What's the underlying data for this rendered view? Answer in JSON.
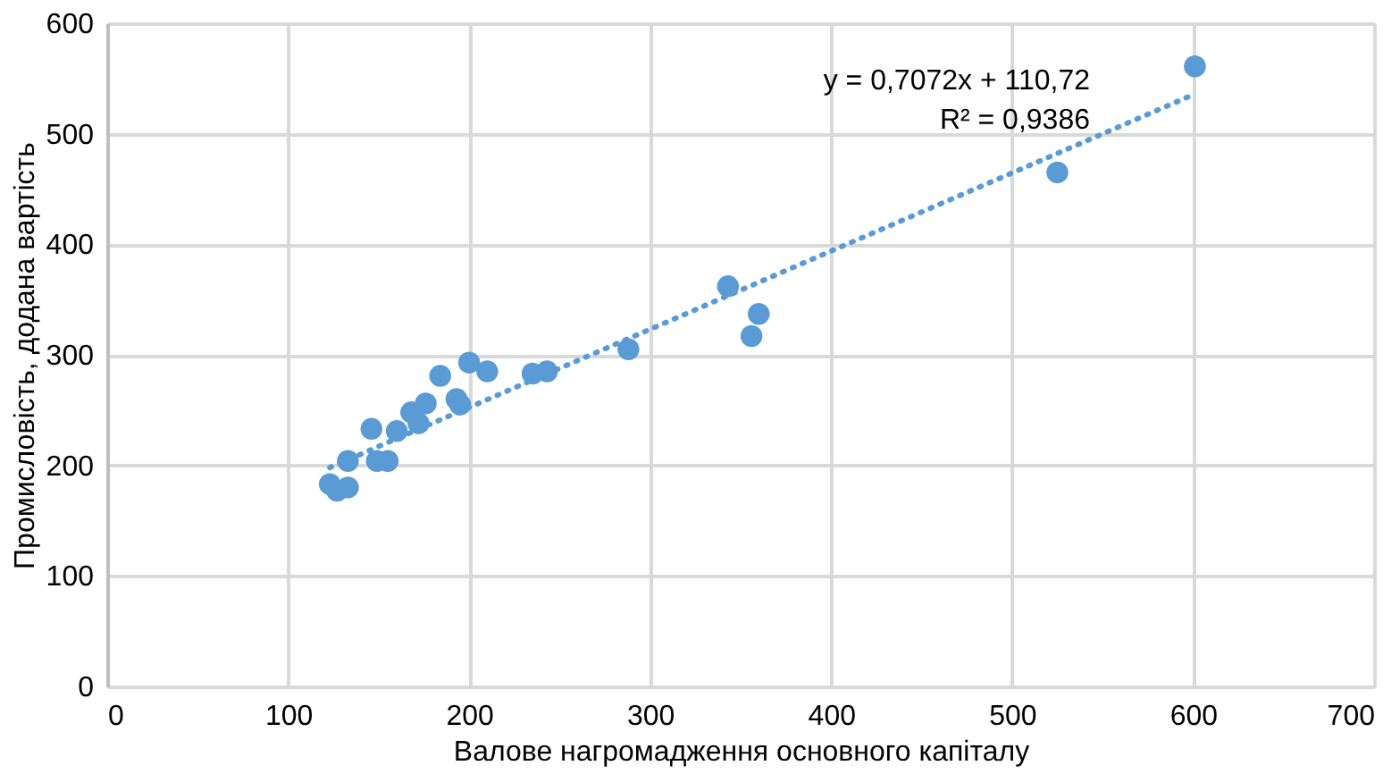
{
  "chart_data": {
    "type": "scatter",
    "xlabel": "Валове нагромадження основного капіталу",
    "ylabel": "Промисловість, додана вартість",
    "xlim": [
      0,
      700
    ],
    "xticks": [
      0,
      100,
      200,
      300,
      400,
      500,
      600,
      700
    ],
    "ylim": [
      0,
      600
    ],
    "yticks": [
      0,
      100,
      200,
      300,
      400,
      500,
      600
    ],
    "grid": true,
    "series": [
      {
        "type": "scatter",
        "marker": "circle",
        "color": "#5b9bd5",
        "x": [
          123,
          127,
          133,
          133,
          146,
          149,
          155,
          160,
          168,
          172,
          176,
          184,
          193,
          195,
          200,
          210,
          235,
          243,
          288,
          343,
          356,
          360,
          525,
          601
        ],
        "values": [
          183,
          177,
          180,
          204,
          233,
          204,
          204,
          231,
          248,
          238,
          256,
          281,
          260,
          255,
          293,
          285,
          283,
          285,
          305,
          362,
          317,
          337,
          465,
          561
        ]
      },
      {
        "type": "line",
        "marker": "none",
        "color": "#5b9bd5",
        "line_style": "dotted",
        "x": [
          123,
          601
        ],
        "values": [
          198,
          536
        ]
      }
    ],
    "annotations": [
      "y = 0,7072x + 110,72",
      "R² = 0,9386"
    ]
  }
}
